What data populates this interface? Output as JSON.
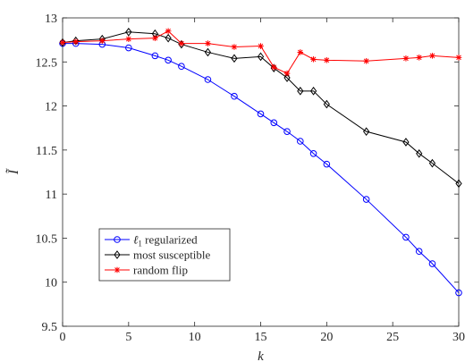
{
  "chart_data": {
    "type": "line",
    "xlabel": "k",
    "ylabel": "Ĩ",
    "xlim": [
      0,
      30
    ],
    "ylim": [
      9.5,
      13
    ],
    "xticks": [
      0,
      5,
      10,
      15,
      20,
      25,
      30
    ],
    "yticks": [
      9.5,
      10,
      10.5,
      11,
      11.5,
      12,
      12.5,
      13
    ],
    "grid": false,
    "legend_position": "bottom-left",
    "series": [
      {
        "name": "ℓ1 regularized",
        "name_main": "ℓ",
        "name_sub": "1",
        "name_rest": " regularized",
        "color": "#0000ff",
        "marker": "circle",
        "x": [
          0,
          1,
          3,
          5,
          7,
          8,
          9,
          11,
          13,
          15,
          16,
          17,
          18,
          19,
          20,
          23,
          26,
          27,
          28,
          30
        ],
        "y": [
          12.71,
          12.71,
          12.7,
          12.66,
          12.57,
          12.52,
          12.45,
          12.3,
          12.11,
          11.91,
          11.81,
          11.71,
          11.6,
          11.46,
          11.34,
          10.94,
          10.51,
          10.35,
          10.21,
          9.88
        ]
      },
      {
        "name": "most susceptible",
        "color": "#000000",
        "marker": "diamond",
        "x": [
          0,
          1,
          3,
          5,
          7,
          8,
          9,
          11,
          13,
          15,
          16,
          17,
          18,
          19,
          20,
          23,
          26,
          27,
          28,
          30
        ],
        "y": [
          12.72,
          12.74,
          12.76,
          12.84,
          12.82,
          12.77,
          12.7,
          12.61,
          12.54,
          12.56,
          12.43,
          12.32,
          12.17,
          12.17,
          12.02,
          11.71,
          11.59,
          11.46,
          11.35,
          11.12
        ]
      },
      {
        "name": "random flip",
        "color": "#ff0000",
        "marker": "asterisk",
        "x": [
          0,
          1,
          3,
          5,
          7,
          8,
          9,
          11,
          13,
          15,
          16,
          17,
          18,
          19,
          20,
          23,
          26,
          27,
          28,
          30
        ],
        "y": [
          12.72,
          12.73,
          12.74,
          12.76,
          12.77,
          12.85,
          12.71,
          12.71,
          12.67,
          12.68,
          12.44,
          12.37,
          12.61,
          12.53,
          12.52,
          12.51,
          12.54,
          12.55,
          12.57,
          12.55
        ]
      }
    ]
  }
}
